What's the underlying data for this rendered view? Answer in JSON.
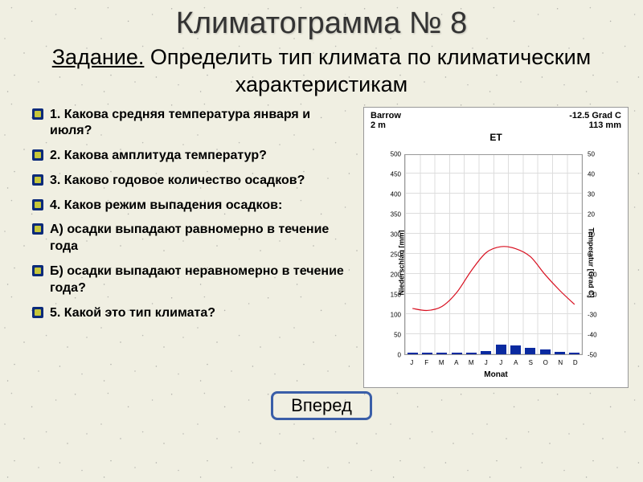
{
  "title": "Климатограмма № 8",
  "subtitle_underlined": "Задание.",
  "subtitle_rest": " Определить тип климата по климатическим характеристикам",
  "questions": [
    "1. Какова средняя температура января и июля?",
    "2. Какова амплитуда температур?",
    "3. Каково годовое количество осадков?",
    "4. Каков режим выпадения осадков:",
    "А) осадки выпадают равномерно в течение года",
    "Б) осадки выпадают неравномерно в течение года?",
    "5. Какой это тип климата?"
  ],
  "bullet_colors": {
    "fill": "#0a2a7a",
    "chip": "#c6c63a"
  },
  "forward_button": "Вперед",
  "forward_button_border": "#3a5ea8",
  "chart": {
    "station": "Barrow",
    "elevation": "2 m",
    "stat_temp": "-12.5 Grad C",
    "stat_precip": "113 mm",
    "title": "ET",
    "xlabel": "Monat",
    "ylabel_left": "Niederschlag [mm]",
    "ylabel_right": "Temperatur [Grad C]",
    "months": [
      "J",
      "F",
      "M",
      "A",
      "M",
      "J",
      "J",
      "A",
      "S",
      "O",
      "N",
      "D"
    ],
    "precip_mm": [
      4,
      4,
      3,
      4,
      4,
      8,
      24,
      22,
      15,
      12,
      6,
      4
    ],
    "precip_axis": {
      "min": 0,
      "max": 500,
      "step": 50
    },
    "temp_c": [
      -27,
      -28,
      -26,
      -19,
      -8,
      1,
      4,
      3,
      -1,
      -10,
      -18,
      -25
    ],
    "temp_axis": {
      "min": -50,
      "max": 50,
      "step": 10
    },
    "bar_color": "#0a2aa0",
    "line_color": "#d81020",
    "grid_color": "#dddddd",
    "bg": "#ffffff"
  }
}
